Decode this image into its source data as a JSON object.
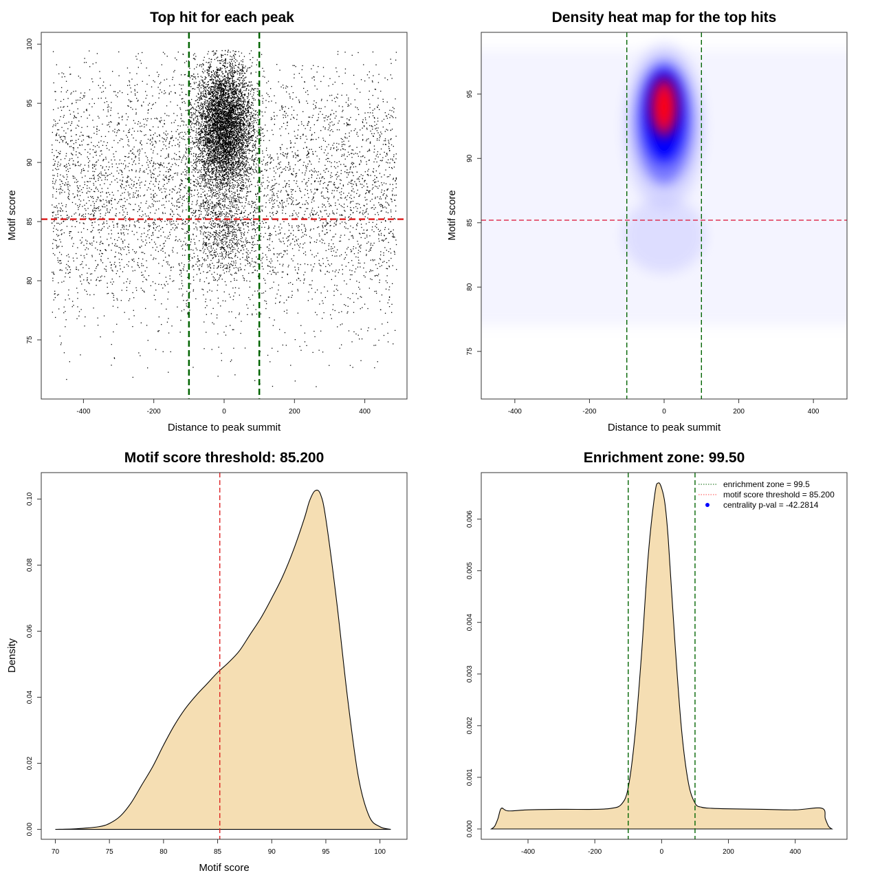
{
  "chart_data": [
    {
      "id": "scatter",
      "type": "scatter",
      "title": "Top hit for each peak",
      "xlabel": "Distance to peak summit",
      "ylabel": "Motif score",
      "xlim": [
        -520,
        520
      ],
      "ylim": [
        70,
        101
      ],
      "xticks": [
        "-400",
        "-200",
        "0",
        "200",
        "400"
      ],
      "yticks": [
        "75",
        "80",
        "85",
        "90",
        "95",
        "100"
      ],
      "vlines": [
        -100,
        100
      ],
      "hline": 85.2,
      "vline_color": "#006400",
      "hline_color": "#dd2222",
      "point_color": "#000000",
      "points": {
        "background": {
          "x_range": [
            -490,
            490
          ],
          "y_mean": 87.5,
          "y_sd": 5.6,
          "count": 5200
        },
        "central": {
          "x_mean": 0,
          "x_sd": 40,
          "y_mean": 93,
          "y_sd": 2.7,
          "count": 6500
        },
        "low_central": {
          "x_mean": 0,
          "x_sd": 50,
          "y_mean": 84,
          "y_sd": 2,
          "count": 700
        }
      }
    },
    {
      "id": "heatmap",
      "type": "heatmap",
      "title": "Density heat map for the top hits",
      "xlabel": "Distance to peak summit",
      "ylabel": "Motif score",
      "xlim": [
        -490,
        490
      ],
      "ylim": [
        71.3,
        99.8
      ],
      "xticks": [
        "-400",
        "-200",
        "0",
        "200",
        "400"
      ],
      "yticks": [
        "75",
        "80",
        "85",
        "90",
        "95"
      ],
      "vlines": [
        -100,
        100
      ],
      "hline": 85.2,
      "vline_color": "#006400",
      "hline_color": "#dd2244",
      "peak": {
        "x": 0,
        "y": 94
      },
      "colors": [
        "#ffffff",
        "#0000ff",
        "#ff0000"
      ]
    },
    {
      "id": "score_density",
      "type": "area",
      "title": "Motif score threshold: 85.200",
      "xlabel": "Motif score",
      "ylabel": "Density",
      "xlim": [
        68.7,
        102.5
      ],
      "ylim": [
        -0.003,
        0.108
      ],
      "xticks": [
        "70",
        "75",
        "80",
        "85",
        "90",
        "95",
        "100"
      ],
      "yticks": [
        "0.00",
        "0.02",
        "0.04",
        "0.06",
        "0.08",
        "0.10"
      ],
      "vline": 85.2,
      "vline_color": "#dd2222",
      "fill": "#f5deb3",
      "x": [
        70,
        72,
        74,
        75,
        76,
        77,
        78,
        79,
        80,
        81,
        82,
        83,
        84,
        85,
        86,
        87,
        88,
        89,
        90,
        91,
        92,
        93,
        93.5,
        94,
        94.5,
        95,
        96,
        97,
        98,
        99,
        100,
        101
      ],
      "values": [
        0,
        0.0002,
        0.0008,
        0.0018,
        0.004,
        0.008,
        0.0135,
        0.019,
        0.0255,
        0.0315,
        0.0365,
        0.0405,
        0.044,
        0.0475,
        0.0505,
        0.054,
        0.059,
        0.064,
        0.07,
        0.0765,
        0.0845,
        0.094,
        0.0995,
        0.1025,
        0.1015,
        0.094,
        0.069,
        0.04,
        0.016,
        0.004,
        0.0008,
        0
      ]
    },
    {
      "id": "distance_density",
      "type": "area",
      "title": "Enrichment zone: 99.50",
      "xlabel": "Distance to peak summit",
      "ylabel": "Density",
      "xlim": [
        -540,
        555
      ],
      "ylim": [
        -0.0002,
        0.0069
      ],
      "xticks": [
        "-400",
        "-200",
        "0",
        "200",
        "400"
      ],
      "yticks": [
        "0.000",
        "0.001",
        "0.002",
        "0.003",
        "0.004",
        "0.005",
        "0.006"
      ],
      "vlines": [
        -100,
        100
      ],
      "vline_color": "#006400",
      "fill": "#f5deb3",
      "x": [
        -510,
        -500,
        -490,
        -480,
        -460,
        -400,
        -300,
        -200,
        -150,
        -120,
        -100,
        -80,
        -60,
        -40,
        -20,
        -10,
        0,
        10,
        20,
        40,
        60,
        80,
        100,
        120,
        150,
        200,
        300,
        400,
        480,
        490,
        500,
        510
      ],
      "values": [
        0,
        5e-05,
        0.0002,
        0.0004,
        0.00035,
        0.00037,
        0.00038,
        0.00038,
        0.0004,
        0.00048,
        0.0008,
        0.0018,
        0.0034,
        0.0053,
        0.0065,
        0.0067,
        0.0066,
        0.0063,
        0.0056,
        0.0036,
        0.0019,
        0.0009,
        0.0005,
        0.00042,
        0.0004,
        0.00039,
        0.00038,
        0.00037,
        0.0004,
        0.0002,
        5e-05,
        0
      ],
      "legend": {
        "placement": "top-right",
        "entries": [
          {
            "label": "enrichment zone = 99.5",
            "color": "#006400",
            "style": "dotted-line"
          },
          {
            "label": "motif score threshold = 85.200",
            "color": "#ff4444",
            "style": "dotted-line"
          },
          {
            "label": "centrality p-val = -42.2814",
            "color": "#0000ff",
            "style": "point"
          }
        ]
      }
    }
  ]
}
